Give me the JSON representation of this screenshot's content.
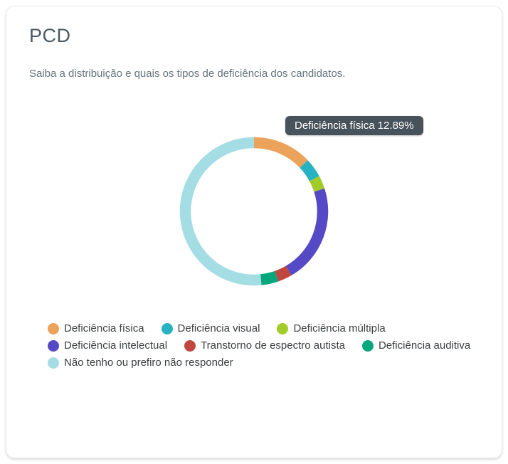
{
  "card": {
    "title": "PCD",
    "subtitle": "Saiba a distribuição e quais os tipos de deficiência dos candidatos."
  },
  "tooltip": {
    "text": "Deficiência física 12.89%",
    "background_color": "#47525a",
    "text_color": "#ffffff"
  },
  "chart_data": {
    "type": "pie",
    "variant": "donut",
    "title": "PCD",
    "legend_position": "bottom",
    "direction": "clockwise",
    "start_angle_deg": 0,
    "inner_radius_ratio": 0.85,
    "segments": [
      {
        "label": "Deficiência física",
        "value": 12.89,
        "color": "#eba25b"
      },
      {
        "label": "Deficiência visual",
        "value": 4.2,
        "color": "#27b2c2"
      },
      {
        "label": "Deficiência múltipla",
        "value": 2.9,
        "color": "#a3cc29"
      },
      {
        "label": "Deficiência intelectual",
        "value": 21.6,
        "color": "#5649c5"
      },
      {
        "label": "Transtorno de espectro autista",
        "value": 3.1,
        "color": "#c1463f"
      },
      {
        "label": "Deficiência auditiva",
        "value": 3.7,
        "color": "#06a77d"
      },
      {
        "label": "Não tenho ou prefiro não responder",
        "value": 51.61,
        "color": "#a5dde4"
      }
    ]
  }
}
